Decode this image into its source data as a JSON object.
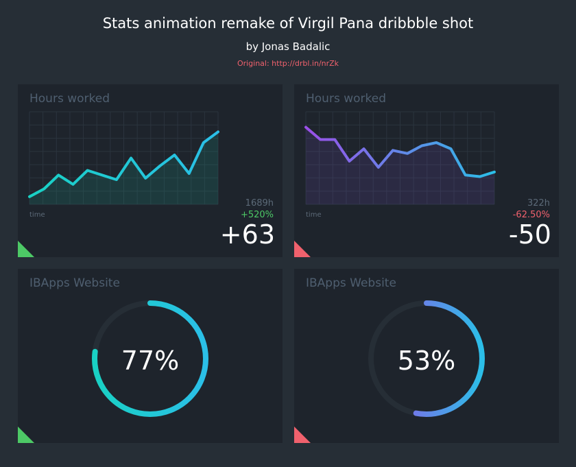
{
  "header": {
    "title": "Stats animation remake of Virgil Pana dribbble shot",
    "author": "by Jonas Badalic",
    "original": "Original: http://drbl.in/nrZk"
  },
  "colors": {
    "background": "#262e36",
    "card": "#1e242c",
    "green": "#4dc966",
    "red": "#f0616d",
    "teal": "#19d1c4",
    "cyan": "#2bbfe8",
    "purple": "#9b4fe8",
    "muted": "#4f5f70"
  },
  "cards": [
    {
      "title": "Hours worked",
      "axis_label": "time",
      "total": "1689h",
      "change_pct": "+520%",
      "change_value": "+63",
      "trend": "up",
      "chart_data": {
        "type": "line",
        "x": [
          0,
          1,
          2,
          3,
          4,
          5,
          6,
          7,
          8,
          9,
          10,
          11,
          12,
          13
        ],
        "values": [
          5,
          10,
          19,
          13,
          22,
          19,
          16,
          30,
          17,
          25,
          32,
          20,
          40,
          47
        ],
        "ylim": [
          0,
          60
        ],
        "grid": true,
        "xlabel": "time"
      }
    },
    {
      "title": "Hours worked",
      "axis_label": "time",
      "total": "322h",
      "change_pct": "-62.50%",
      "change_value": "-50",
      "trend": "down",
      "chart_data": {
        "type": "line",
        "x": [
          0,
          1,
          2,
          3,
          4,
          5,
          6,
          7,
          8,
          9,
          10,
          11,
          12,
          13
        ],
        "values": [
          50,
          42,
          42,
          28,
          36,
          24,
          35,
          33,
          38,
          40,
          36,
          19,
          18,
          21
        ],
        "ylim": [
          0,
          60
        ],
        "grid": true,
        "xlabel": "time"
      }
    },
    {
      "title": "IBApps Website",
      "percent_label": "77%",
      "percent": 77,
      "trend": "up"
    },
    {
      "title": "IBApps Website",
      "percent_label": "53%",
      "percent": 53,
      "trend": "down"
    }
  ]
}
